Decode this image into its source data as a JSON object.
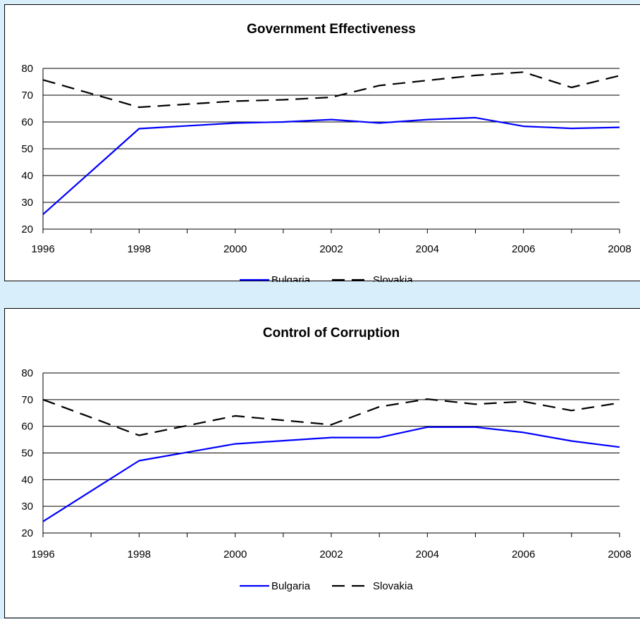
{
  "chart_data": [
    {
      "type": "line",
      "title": "Government Effectiveness",
      "x": [
        1996,
        1998,
        2000,
        2001,
        2002,
        2003,
        2004,
        2005,
        2006,
        2007,
        2008
      ],
      "xticks": [
        "1996",
        "1998",
        "2000",
        "2002",
        "2004",
        "2006",
        "2008"
      ],
      "yticks": [
        "20",
        "30",
        "40",
        "50",
        "60",
        "70",
        "80"
      ],
      "xlim": [
        1996,
        2008
      ],
      "ylim": [
        20,
        80
      ],
      "grid": "horizontal",
      "legend": "bottom",
      "series": [
        {
          "name": "Bulgaria",
          "color": "#0000ff",
          "style": "solid",
          "values": [
            25.5,
            57.5,
            59.6,
            60.0,
            60.9,
            59.6,
            60.9,
            61.6,
            58.4,
            57.6,
            58.0
          ]
        },
        {
          "name": "Slovakia",
          "color": "#000000",
          "style": "dashed",
          "values": [
            75.7,
            65.5,
            67.8,
            68.3,
            69.2,
            73.6,
            75.5,
            77.4,
            78.6,
            72.9,
            77.3
          ]
        }
      ]
    },
    {
      "type": "line",
      "title": "Control of Corruption",
      "x": [
        1996,
        1998,
        2000,
        2002,
        2003,
        2004,
        2005,
        2006,
        2007,
        2008
      ],
      "xticks": [
        "1996",
        "1998",
        "2000",
        "2002",
        "2004",
        "2006",
        "2008"
      ],
      "yticks": [
        "20",
        "30",
        "40",
        "50",
        "60",
        "70",
        "80"
      ],
      "xlim": [
        1996,
        2008
      ],
      "ylim": [
        20,
        80
      ],
      "grid": "horizontal",
      "legend": "bottom",
      "series": [
        {
          "name": "Bulgaria",
          "color": "#0000ff",
          "style": "solid",
          "values": [
            24.3,
            47.1,
            53.4,
            55.8,
            55.8,
            59.7,
            59.7,
            57.7,
            54.5,
            52.2
          ]
        },
        {
          "name": "Slovakia",
          "color": "#000000",
          "style": "dashed",
          "values": [
            70.0,
            56.6,
            63.9,
            60.6,
            67.3,
            70.2,
            68.3,
            69.3,
            65.9,
            68.8
          ]
        }
      ]
    }
  ]
}
